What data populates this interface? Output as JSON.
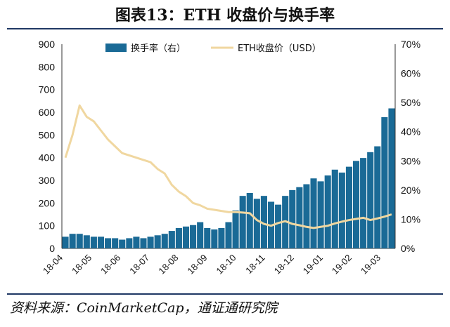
{
  "title": "图表13：ETH 收盘价与换手率",
  "source": "资料来源：CoinMarketCap，通证通研究院",
  "colors": {
    "turnover": "#1a6a96",
    "price": "#f0d7a0",
    "rule": "#1f3864"
  },
  "chart_data": {
    "type": "bar+line",
    "legend_position": "top",
    "x_labels": [
      "18-04",
      "18-05",
      "18-06",
      "18-07",
      "18-08",
      "18-09",
      "18-10",
      "18-11",
      "18-12",
      "19-01",
      "19-02",
      "19-03"
    ],
    "y_left": {
      "ticks": [
        "0",
        "100",
        "200",
        "300",
        "400",
        "500",
        "600",
        "700",
        "800",
        "900"
      ],
      "lim": [
        0,
        900
      ]
    },
    "y_right": {
      "ticks": [
        "0%",
        "10%",
        "20%",
        "30%",
        "40%",
        "50%",
        "60%",
        "70%"
      ],
      "lim": [
        0,
        0.7
      ]
    },
    "series": [
      {
        "name": "换手率（右）",
        "type": "bar",
        "axis": "right",
        "values": [
          0.04,
          0.05,
          0.05,
          0.045,
          0.04,
          0.04,
          0.035,
          0.035,
          0.03,
          0.035,
          0.04,
          0.035,
          0.04,
          0.045,
          0.05,
          0.06,
          0.07,
          0.075,
          0.08,
          0.09,
          0.07,
          0.065,
          0.07,
          0.09,
          0.13,
          0.18,
          0.19,
          0.17,
          0.18,
          0.16,
          0.15,
          0.18,
          0.2,
          0.21,
          0.22,
          0.24,
          0.23,
          0.25,
          0.27,
          0.26,
          0.28,
          0.3,
          0.31,
          0.33,
          0.35,
          0.45,
          0.48
        ]
      },
      {
        "name": "ETH收盘价（USD）",
        "type": "line",
        "axis": "left",
        "values": [
          400,
          500,
          630,
          580,
          560,
          520,
          480,
          450,
          420,
          410,
          400,
          390,
          380,
          350,
          330,
          280,
          250,
          230,
          200,
          190,
          175,
          170,
          165,
          160,
          160,
          158,
          155,
          125,
          108,
          100,
          112,
          120,
          108,
          102,
          95,
          90,
          95,
          100,
          110,
          118,
          125,
          130,
          135,
          125,
          132,
          140,
          150
        ]
      }
    ]
  }
}
